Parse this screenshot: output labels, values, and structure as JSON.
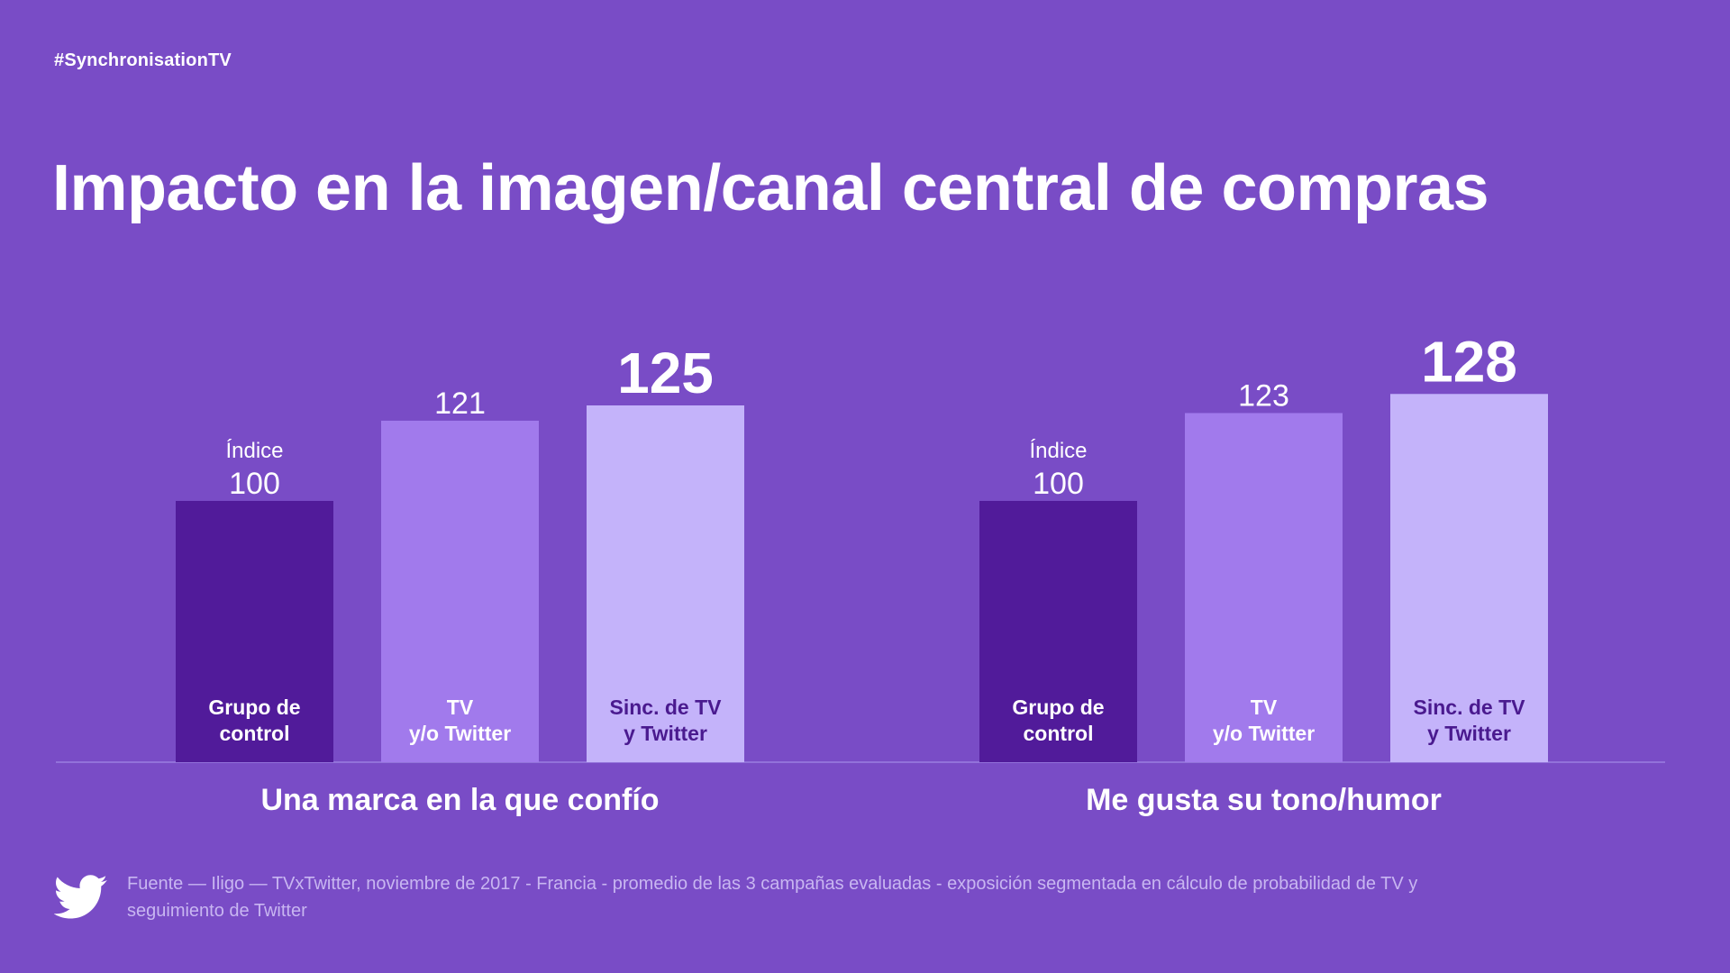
{
  "hashtag": "#SynchronisationTV",
  "title": "Impacto en la imagen/canal central de compras",
  "source": "Fuente — Iligo — TVxTwitter, noviembre de 2017 - Francia - promedio de las 3 campañas evaluadas - exposición segmentada en cálculo de probabilidad de TV y seguimiento de Twitter",
  "footer_icon": "twitter-bird-icon",
  "colors": {
    "background": "#794cc6",
    "control": "#511b9a",
    "tv_or_twitter": "#a17aec",
    "sync": "#c4b3fa",
    "baseline": "#9b7ee0",
    "dark_label": "#4a1a8f"
  },
  "chart_data": [
    {
      "type": "bar",
      "group_label": "Una marca en la que confío",
      "categories": [
        "Grupo de\ncontrol",
        "TV\ny/o Twitter",
        "Sinc. de TV\ny Twitter"
      ],
      "values": [
        100,
        121,
        125
      ],
      "value_prefix": [
        "Índice",
        "",
        ""
      ],
      "highlight_index": 2
    },
    {
      "type": "bar",
      "group_label": "Me gusta su tono/humor",
      "categories": [
        "Grupo de\ncontrol",
        "TV\ny/o Twitter",
        "Sinc. de TV\ny Twitter"
      ],
      "values": [
        100,
        123,
        128
      ],
      "value_prefix": [
        "Índice",
        "",
        ""
      ],
      "highlight_index": 2
    }
  ]
}
